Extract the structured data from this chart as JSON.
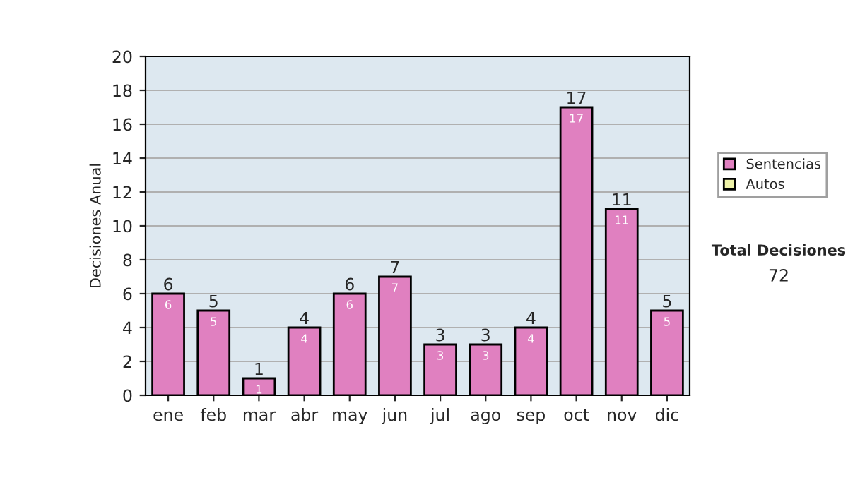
{
  "chart_data": {
    "type": "bar",
    "ylabel": "Decisiones Anual",
    "categories": [
      "ene",
      "feb",
      "mar",
      "abr",
      "may",
      "jun",
      "jul",
      "ago",
      "sep",
      "oct",
      "nov",
      "dic"
    ],
    "series": [
      {
        "name": "Sentencias",
        "color": "#e080c0",
        "values": [
          6,
          5,
          1,
          4,
          6,
          7,
          3,
          3,
          4,
          17,
          11,
          5
        ],
        "value_labels": [
          "6",
          "5",
          "1",
          "4",
          "6",
          "7",
          "3",
          "3",
          "4",
          "17",
          "11",
          "5"
        ]
      },
      {
        "name": "Autos",
        "color": "#eef2a8",
        "values": [
          0,
          0,
          0,
          0,
          0,
          0,
          0,
          0,
          0,
          0,
          0,
          0
        ]
      }
    ],
    "stacked": true,
    "totals": [
      "6",
      "5",
      "1",
      "4",
      "6",
      "7",
      "3",
      "3",
      "4",
      "17",
      "11",
      "5"
    ],
    "ylim": [
      0,
      20
    ],
    "yticks": [
      0,
      2,
      4,
      6,
      8,
      10,
      12,
      14,
      16,
      18,
      20
    ],
    "grid": "y",
    "legend": "right",
    "annotations": [
      "Total Decisiones",
      "72"
    ]
  }
}
